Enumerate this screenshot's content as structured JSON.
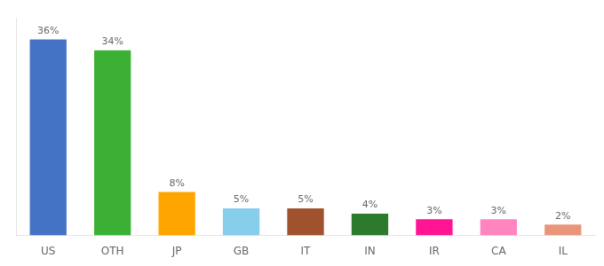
{
  "chart_data": {
    "type": "bar",
    "categories": [
      "US",
      "OTH",
      "JP",
      "GB",
      "IT",
      "IN",
      "IR",
      "CA",
      "IL"
    ],
    "values": [
      36,
      34,
      8,
      5,
      5,
      4,
      3,
      3,
      2
    ],
    "value_labels": [
      "36%",
      "34%",
      "8%",
      "5%",
      "5%",
      "4%",
      "3%",
      "3%",
      "2%"
    ],
    "colors": [
      "#4472C4",
      "#3CB034",
      "#FFA500",
      "#87CEEB",
      "#A0522D",
      "#2D7A2D",
      "#FF1493",
      "#FF85C0",
      "#E8967A"
    ],
    "ylim": [
      0,
      40
    ],
    "grid": false,
    "data_labels": true,
    "tick_labels": "x"
  }
}
